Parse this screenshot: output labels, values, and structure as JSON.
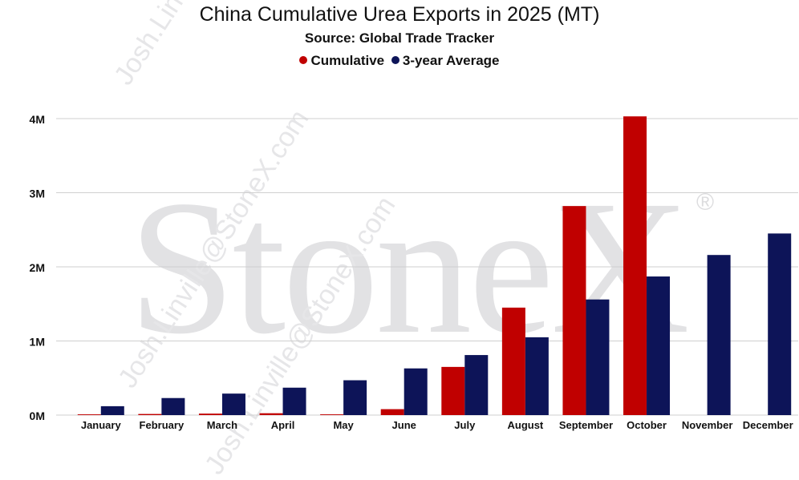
{
  "watermark": {
    "brand": "StoneX",
    "registered": "®",
    "email": "Josh.Linville@StoneX.com"
  },
  "chart_data": {
    "type": "bar",
    "title": "China Cumulative Urea Exports in 2025 (MT)",
    "subtitle": "Source: Global Trade Tracker",
    "categories": [
      "January",
      "February",
      "March",
      "April",
      "May",
      "June",
      "July",
      "August",
      "September",
      "October",
      "November",
      "December"
    ],
    "series": [
      {
        "name": "Cumulative",
        "color": "#c00000",
        "values": [
          10000,
          15000,
          20000,
          25000,
          10000,
          80000,
          650000,
          1450000,
          2820000,
          4030000,
          null,
          null
        ]
      },
      {
        "name": "3-year Average",
        "color": "#0d1458",
        "values": [
          120000,
          230000,
          290000,
          370000,
          470000,
          630000,
          810000,
          1050000,
          1560000,
          1870000,
          2160000,
          2450000
        ]
      }
    ],
    "yticks": [
      0,
      1000000,
      2000000,
      3000000,
      4000000
    ],
    "ytick_labels": [
      "0M",
      "1M",
      "2M",
      "3M",
      "4M"
    ],
    "ylim": [
      0,
      4000000
    ],
    "xlabel": "",
    "ylabel": "",
    "grid": true,
    "legend_position": "top"
  }
}
